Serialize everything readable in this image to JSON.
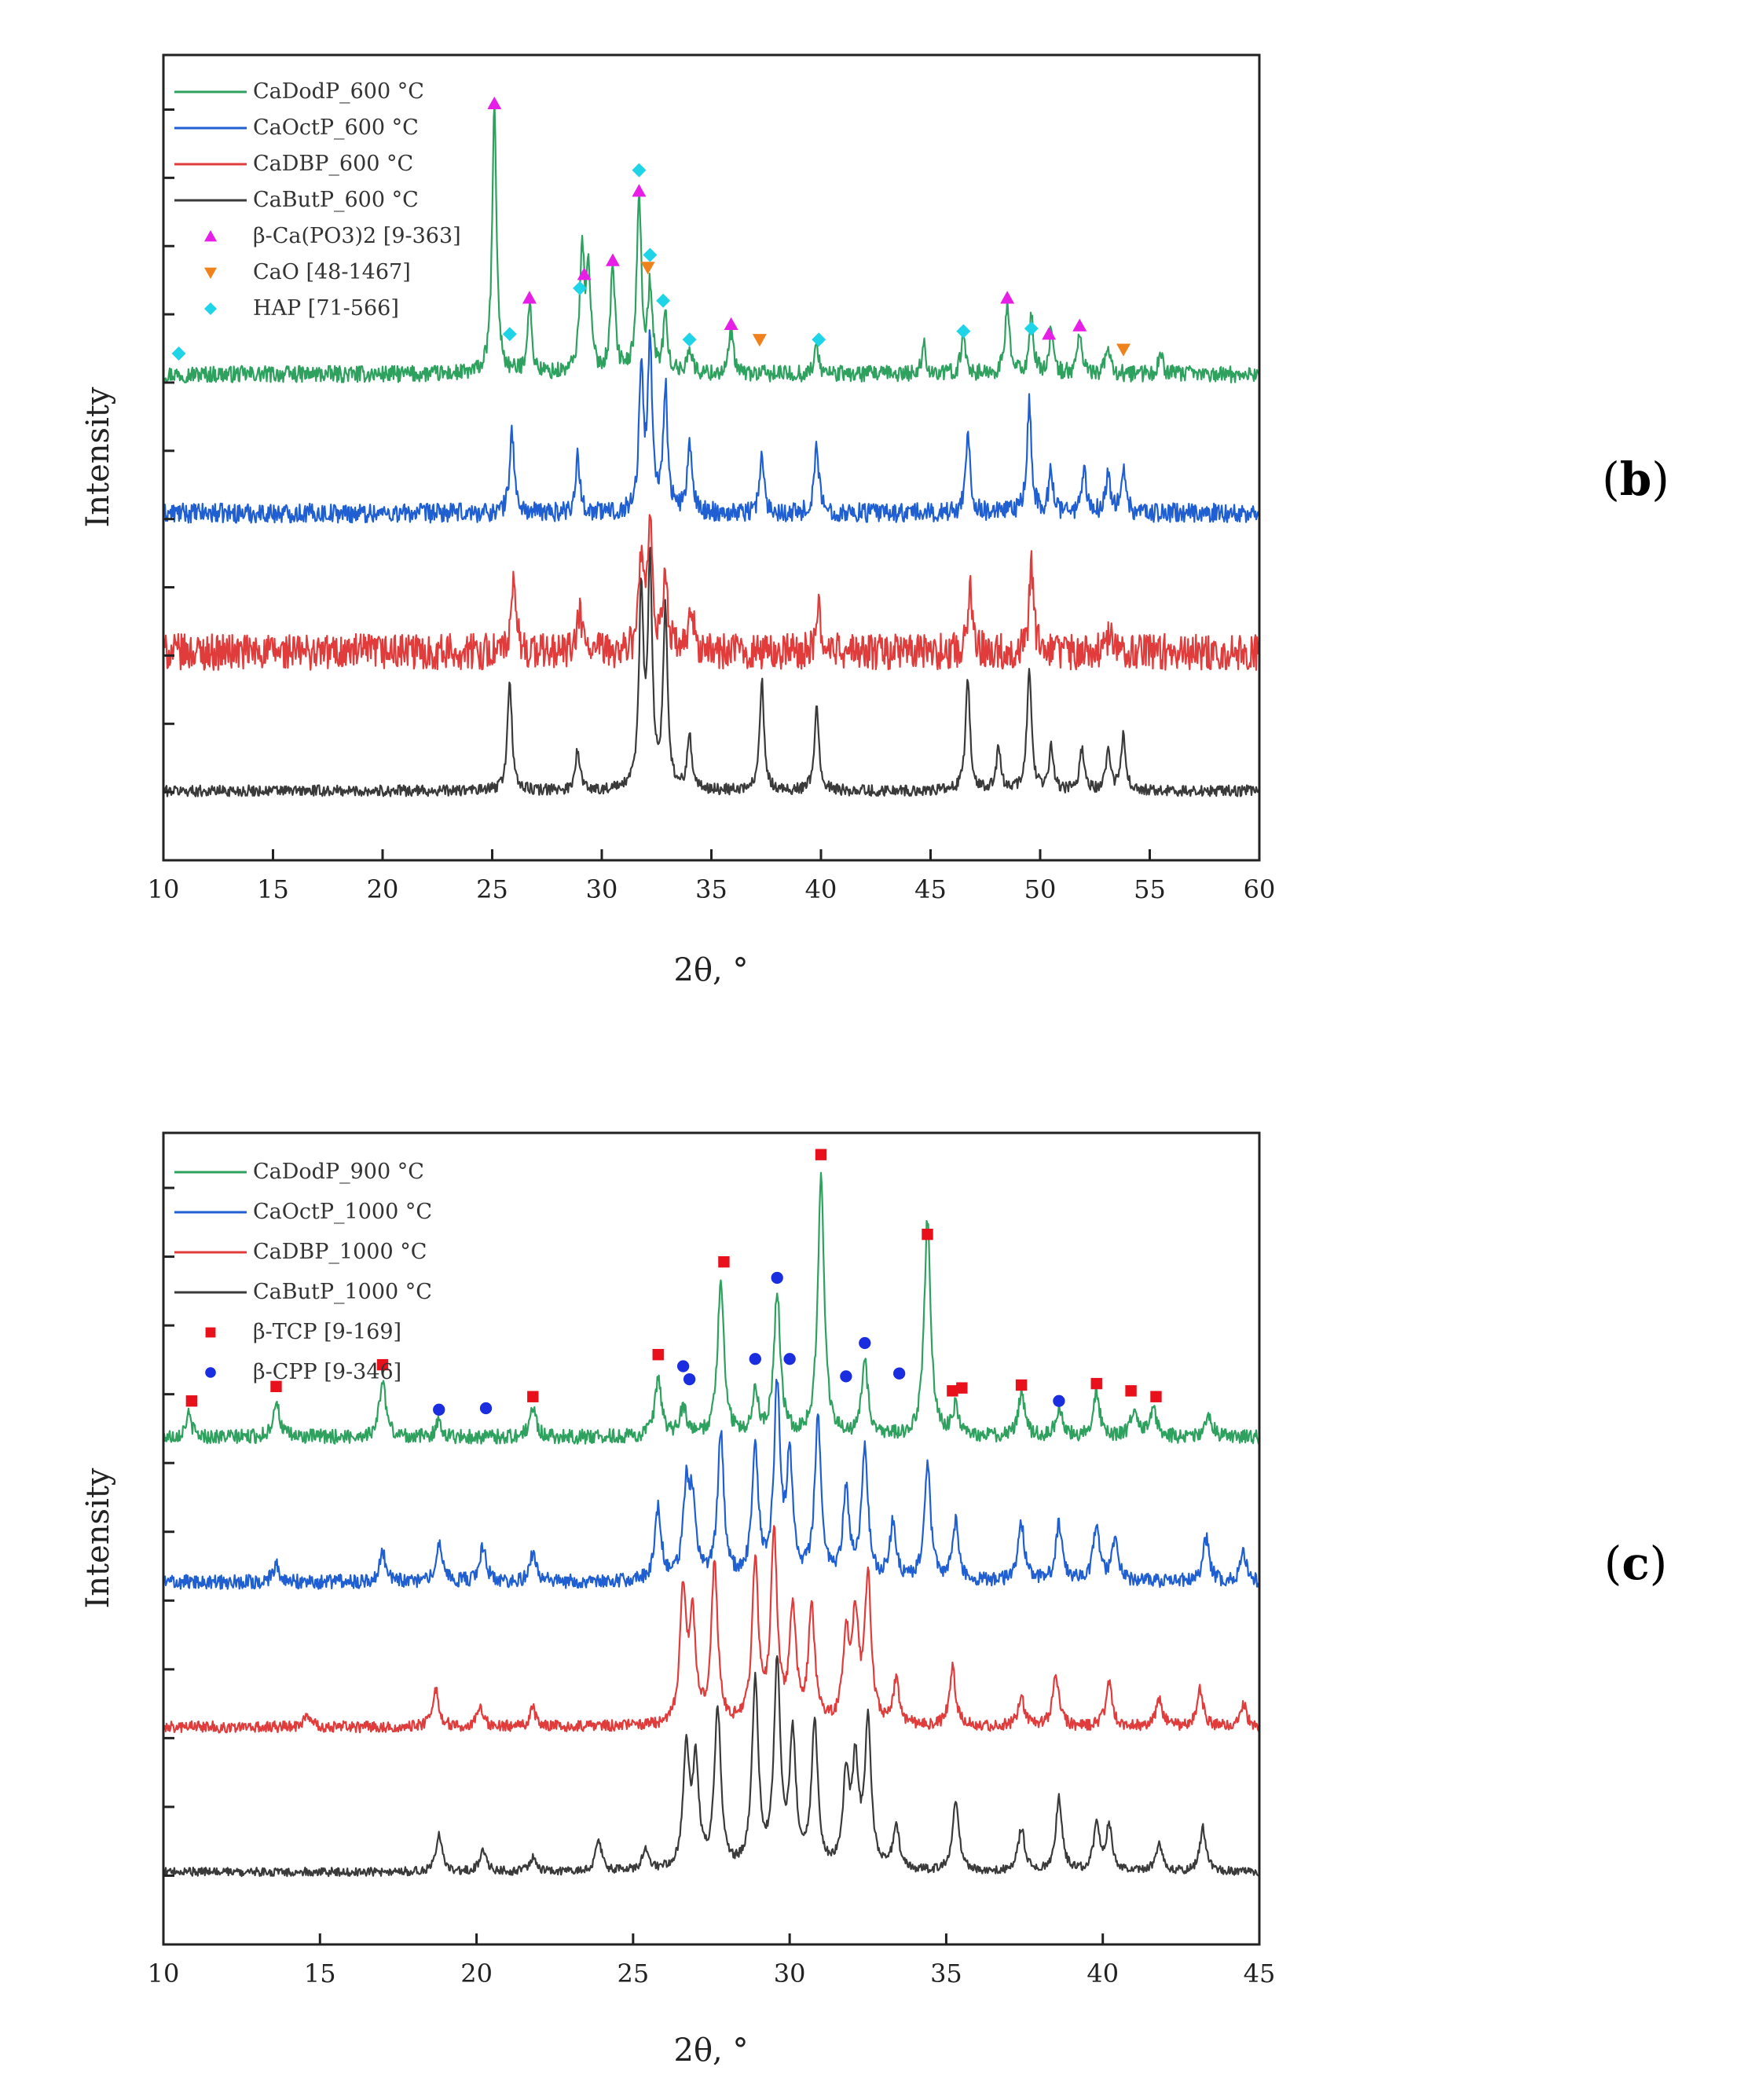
{
  "chart_data": [
    {
      "type": "line",
      "panel_tag": "b",
      "xlabel": "2θ, °",
      "ylabel": "Intensity",
      "xlim": [
        10,
        60
      ],
      "xticks": [
        10,
        15,
        20,
        25,
        30,
        35,
        40,
        45,
        50,
        55,
        60
      ],
      "ytick_count": 11,
      "series": [
        {
          "name": "CaDodP_600 °C",
          "color": "#2fa15f",
          "baseline": 3.0,
          "noise": 0.06,
          "peaks": [
            [
              25.1,
              1.9
            ],
            [
              26.7,
              0.5
            ],
            [
              29.1,
              0.9
            ],
            [
              29.4,
              0.7
            ],
            [
              30.5,
              0.8
            ],
            [
              31.7,
              1.3
            ],
            [
              32.2,
              0.6
            ],
            [
              32.9,
              0.4
            ],
            [
              34.0,
              0.2
            ],
            [
              35.9,
              0.3
            ],
            [
              39.8,
              0.2
            ],
            [
              44.7,
              0.2
            ],
            [
              46.5,
              0.3
            ],
            [
              48.5,
              0.5
            ],
            [
              49.6,
              0.4
            ],
            [
              50.5,
              0.3
            ],
            [
              51.8,
              0.3
            ],
            [
              53.1,
              0.2
            ],
            [
              55.5,
              0.15
            ]
          ]
        },
        {
          "name": "CaOctP_600 °C",
          "color": "#1f5fd1",
          "baseline": 2.0,
          "noise": 0.07,
          "peaks": [
            [
              25.9,
              0.6
            ],
            [
              28.9,
              0.4
            ],
            [
              31.8,
              1.0
            ],
            [
              32.2,
              1.2
            ],
            [
              32.9,
              0.9
            ],
            [
              34.0,
              0.5
            ],
            [
              37.3,
              0.4
            ],
            [
              39.8,
              0.5
            ],
            [
              46.7,
              0.6
            ],
            [
              49.5,
              0.8
            ],
            [
              50.5,
              0.3
            ],
            [
              52.0,
              0.3
            ],
            [
              53.1,
              0.3
            ],
            [
              53.8,
              0.3
            ]
          ]
        },
        {
          "name": "CaDBP_600 °C",
          "color": "#e03c3c",
          "baseline": 1.0,
          "noise": 0.13,
          "peaks": [
            [
              26.0,
              0.5
            ],
            [
              29.0,
              0.3
            ],
            [
              31.8,
              0.7
            ],
            [
              32.2,
              0.9
            ],
            [
              32.9,
              0.6
            ],
            [
              34.1,
              0.3
            ],
            [
              39.9,
              0.3
            ],
            [
              46.8,
              0.5
            ],
            [
              49.6,
              0.6
            ],
            [
              53.2,
              0.2
            ]
          ]
        },
        {
          "name": "CaButP_600 °C",
          "color": "#3a3a3a",
          "baseline": 0.0,
          "noise": 0.04,
          "peaks": [
            [
              25.8,
              0.8
            ],
            [
              28.9,
              0.3
            ],
            [
              31.8,
              1.4
            ],
            [
              32.2,
              1.6
            ],
            [
              32.9,
              1.3
            ],
            [
              34.0,
              0.4
            ],
            [
              37.3,
              0.8
            ],
            [
              39.8,
              0.6
            ],
            [
              46.7,
              0.8
            ],
            [
              48.1,
              0.3
            ],
            [
              49.5,
              0.9
            ],
            [
              50.5,
              0.3
            ],
            [
              51.9,
              0.3
            ],
            [
              53.1,
              0.3
            ],
            [
              53.8,
              0.4
            ]
          ]
        }
      ],
      "ylim": [
        -0.5,
        5.3
      ],
      "legend": [
        {
          "label": "CaDodP_600 °C",
          "kind": "line",
          "color": "#2fa15f"
        },
        {
          "label": "CaOctP_600 °C",
          "kind": "line",
          "color": "#1f5fd1"
        },
        {
          "label": "CaDBP_600 °C",
          "kind": "line",
          "color": "#e03c3c"
        },
        {
          "label": "CaButP_600 °C",
          "kind": "line",
          "color": "#3a3a3a"
        },
        {
          "label": "β-Ca(PO3)2 [9-363]",
          "kind": "triangle-up",
          "color": "#e61ee6"
        },
        {
          "label": "CaO [48-1467]",
          "kind": "triangle-down",
          "color": "#f0821e"
        },
        {
          "label": "HAP [71-566]",
          "kind": "diamond",
          "color": "#20d4e8"
        }
      ],
      "markers": [
        {
          "kind": "triangle-up",
          "color": "#e61ee6",
          "points": [
            [
              25.1,
              4.95
            ],
            [
              26.7,
              3.55
            ],
            [
              29.2,
              3.72
            ],
            [
              30.5,
              3.82
            ],
            [
              31.7,
              4.32
            ],
            [
              35.9,
              3.36
            ],
            [
              48.5,
              3.55
            ],
            [
              50.4,
              3.29
            ],
            [
              51.8,
              3.35
            ]
          ]
        },
        {
          "kind": "triangle-down",
          "color": "#f0821e",
          "points": [
            [
              32.1,
              3.77
            ],
            [
              37.2,
              3.25
            ],
            [
              53.8,
              3.18
            ]
          ]
        },
        {
          "kind": "diamond",
          "color": "#20d4e8",
          "points": [
            [
              10.7,
              3.15
            ],
            [
              25.8,
              3.29
            ],
            [
              29.0,
              3.62
            ],
            [
              31.7,
              4.47
            ],
            [
              32.2,
              3.86
            ],
            [
              32.8,
              3.53
            ],
            [
              34.0,
              3.25
            ],
            [
              39.9,
              3.25
            ],
            [
              46.5,
              3.31
            ],
            [
              49.6,
              3.33
            ]
          ]
        }
      ]
    },
    {
      "type": "line",
      "panel_tag": "c",
      "xlabel": "2θ, °",
      "ylabel": "Intensity",
      "xlim": [
        10,
        45
      ],
      "xticks": [
        10,
        15,
        20,
        25,
        30,
        35,
        40,
        45
      ],
      "ytick_count": 11,
      "series": [
        {
          "name": "CaDodP_900 °C",
          "color": "#2fa15f",
          "baseline": 3.0,
          "noise": 0.05,
          "peaks": [
            [
              10.8,
              0.15
            ],
            [
              13.6,
              0.25
            ],
            [
              17.0,
              0.4
            ],
            [
              18.8,
              0.1
            ],
            [
              21.8,
              0.2
            ],
            [
              25.8,
              0.4
            ],
            [
              26.6,
              0.2
            ],
            [
              27.8,
              1.1
            ],
            [
              28.9,
              0.3
            ],
            [
              29.6,
              1.0
            ],
            [
              31.0,
              1.8
            ],
            [
              32.4,
              0.5
            ],
            [
              34.4,
              1.5
            ],
            [
              35.3,
              0.2
            ],
            [
              37.4,
              0.3
            ],
            [
              38.6,
              0.2
            ],
            [
              39.8,
              0.3
            ],
            [
              41.0,
              0.2
            ],
            [
              41.6,
              0.2
            ],
            [
              43.4,
              0.15
            ]
          ]
        },
        {
          "name": "CaOctP_1000 °C",
          "color": "#1f5fd1",
          "baseline": 2.0,
          "noise": 0.05,
          "peaks": [
            [
              13.6,
              0.12
            ],
            [
              17.0,
              0.2
            ],
            [
              18.8,
              0.25
            ],
            [
              20.2,
              0.25
            ],
            [
              21.8,
              0.2
            ],
            [
              25.8,
              0.5
            ],
            [
              26.7,
              0.6
            ],
            [
              26.9,
              0.5
            ],
            [
              27.8,
              1.0
            ],
            [
              28.9,
              0.9
            ],
            [
              29.6,
              1.3
            ],
            [
              30.0,
              0.8
            ],
            [
              30.9,
              1.1
            ],
            [
              31.8,
              0.6
            ],
            [
              32.4,
              0.9
            ],
            [
              33.3,
              0.4
            ],
            [
              34.4,
              0.8
            ],
            [
              35.3,
              0.4
            ],
            [
              37.4,
              0.4
            ],
            [
              38.6,
              0.4
            ],
            [
              39.8,
              0.4
            ],
            [
              40.4,
              0.3
            ],
            [
              43.3,
              0.3
            ],
            [
              44.5,
              0.2
            ]
          ]
        },
        {
          "name": "CaDBP_1000 °C",
          "color": "#e03c3c",
          "baseline": 1.0,
          "noise": 0.04,
          "peaks": [
            [
              14.6,
              0.08
            ],
            [
              18.7,
              0.25
            ],
            [
              20.1,
              0.15
            ],
            [
              21.8,
              0.12
            ],
            [
              26.6,
              0.9
            ],
            [
              26.9,
              0.7
            ],
            [
              27.6,
              1.1
            ],
            [
              28.9,
              1.1
            ],
            [
              29.5,
              1.3
            ],
            [
              30.1,
              0.8
            ],
            [
              30.7,
              0.8
            ],
            [
              31.8,
              0.6
            ],
            [
              32.1,
              0.7
            ],
            [
              32.5,
              1.0
            ],
            [
              33.4,
              0.3
            ],
            [
              35.2,
              0.4
            ],
            [
              37.4,
              0.2
            ],
            [
              38.5,
              0.35
            ],
            [
              40.2,
              0.3
            ],
            [
              41.8,
              0.2
            ],
            [
              43.1,
              0.25
            ],
            [
              44.5,
              0.15
            ]
          ]
        },
        {
          "name": "CaButP_1000 °C",
          "color": "#3a3a3a",
          "baseline": 0.0,
          "noise": 0.03,
          "peaks": [
            [
              18.8,
              0.25
            ],
            [
              20.2,
              0.15
            ],
            [
              21.8,
              0.1
            ],
            [
              23.9,
              0.2
            ],
            [
              25.4,
              0.15
            ],
            [
              26.7,
              0.8
            ],
            [
              27.0,
              0.7
            ],
            [
              27.7,
              1.1
            ],
            [
              28.9,
              1.3
            ],
            [
              29.6,
              1.4
            ],
            [
              30.1,
              0.9
            ],
            [
              30.8,
              1.0
            ],
            [
              31.8,
              0.6
            ],
            [
              32.1,
              0.7
            ],
            [
              32.5,
              1.0
            ],
            [
              33.4,
              0.3
            ],
            [
              35.3,
              0.5
            ],
            [
              37.4,
              0.3
            ],
            [
              38.6,
              0.5
            ],
            [
              39.8,
              0.3
            ],
            [
              40.2,
              0.3
            ],
            [
              41.8,
              0.2
            ],
            [
              43.2,
              0.3
            ]
          ]
        }
      ],
      "ylim": [
        -0.5,
        5.1
      ],
      "legend": [
        {
          "label": "CaDodP_900 °C",
          "kind": "line",
          "color": "#2fa15f"
        },
        {
          "label": "CaOctP_1000 °C",
          "kind": "line",
          "color": "#1f5fd1"
        },
        {
          "label": "CaDBP_1000 °C",
          "kind": "line",
          "color": "#e03c3c"
        },
        {
          "label": "CaButP_1000 °C",
          "kind": "line",
          "color": "#3a3a3a"
        },
        {
          "label": "β-TCP [9-169]",
          "kind": "square",
          "color": "#e8101a"
        },
        {
          "label": "β-CPP [9-346]",
          "kind": "circle",
          "color": "#1a2ee0"
        }
      ],
      "markers": [
        {
          "kind": "square",
          "color": "#e8101a",
          "points": [
            [
              10.9,
              3.25
            ],
            [
              13.6,
              3.35
            ],
            [
              17.0,
              3.5
            ],
            [
              21.8,
              3.28
            ],
            [
              25.8,
              3.57
            ],
            [
              27.9,
              4.21
            ],
            [
              31.0,
              4.95
            ],
            [
              34.4,
              4.4
            ],
            [
              35.2,
              3.32
            ],
            [
              35.5,
              3.34
            ],
            [
              37.4,
              3.36
            ],
            [
              39.8,
              3.37
            ],
            [
              40.9,
              3.32
            ],
            [
              41.7,
              3.28
            ]
          ]
        },
        {
          "kind": "circle",
          "color": "#1a2ee0",
          "points": [
            [
              18.8,
              3.19
            ],
            [
              20.3,
              3.2
            ],
            [
              26.6,
              3.49
            ],
            [
              26.8,
              3.4
            ],
            [
              28.9,
              3.54
            ],
            [
              29.6,
              4.1
            ],
            [
              30.0,
              3.54
            ],
            [
              31.8,
              3.42
            ],
            [
              32.4,
              3.65
            ],
            [
              33.5,
              3.44
            ],
            [
              38.6,
              3.25
            ]
          ]
        }
      ]
    }
  ]
}
